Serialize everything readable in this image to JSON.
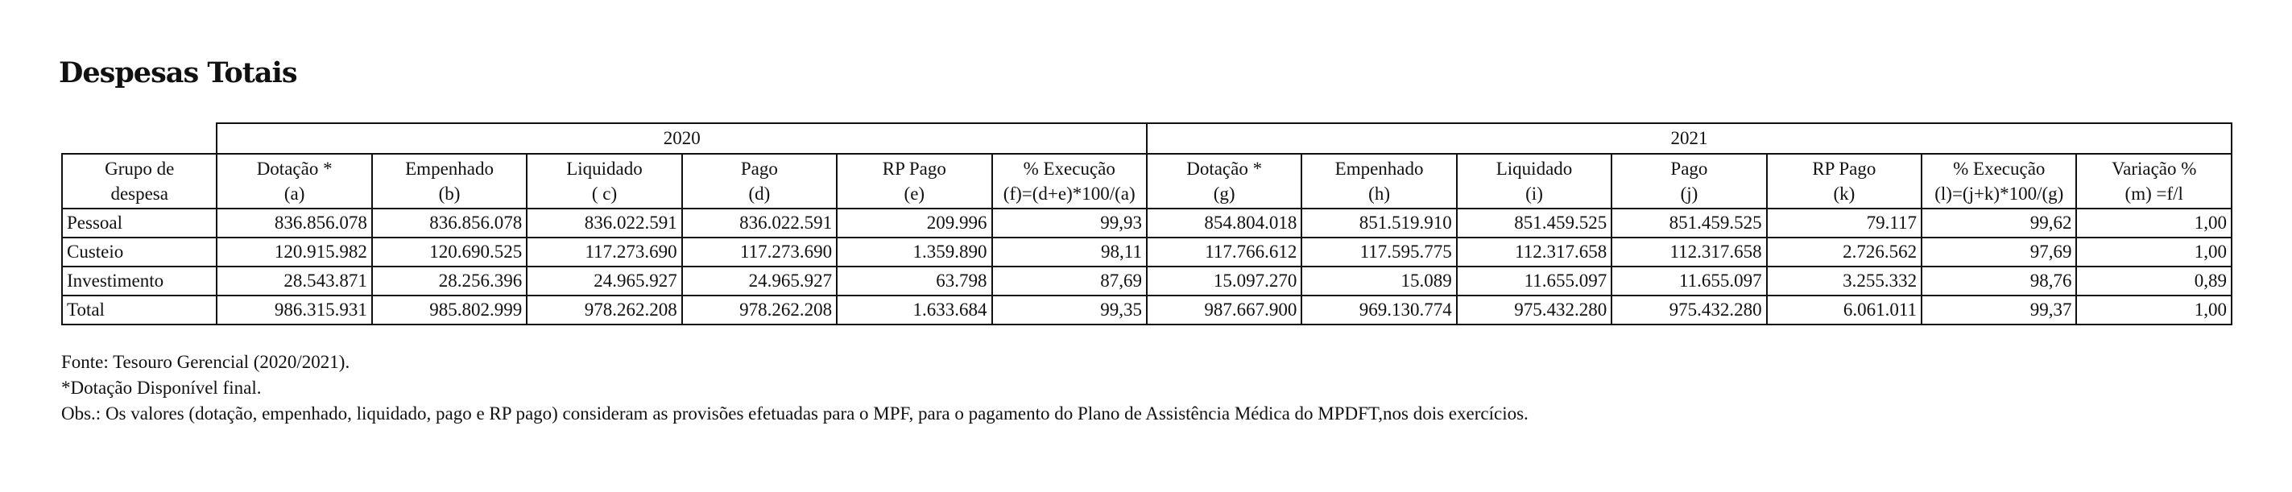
{
  "title": "Despesas Totais",
  "years": [
    "2020",
    "2021"
  ],
  "headers": [
    [
      "Grupo de",
      "despesa"
    ],
    [
      "Dotação *",
      "(a)"
    ],
    [
      "Empenhado",
      "(b)"
    ],
    [
      "Liquidado",
      "( c)"
    ],
    [
      "Pago",
      "(d)"
    ],
    [
      "RP Pago",
      "(e)"
    ],
    [
      "% Execução",
      "(f)=(d+e)*100/(a)"
    ],
    [
      "Dotação *",
      "(g)"
    ],
    [
      "Empenhado",
      "(h)"
    ],
    [
      "Liquidado",
      "(i)"
    ],
    [
      "Pago",
      "(j)"
    ],
    [
      "RP Pago",
      "(k)"
    ],
    [
      "% Execução",
      "(l)=(j+k)*100/(g)"
    ],
    [
      "Variação %",
      "(m) =f/l"
    ]
  ],
  "rows": [
    [
      "Pessoal",
      "836.856.078",
      "836.856.078",
      "836.022.591",
      "836.022.591",
      "209.996",
      "99,93",
      "854.804.018",
      "851.519.910",
      "851.459.525",
      "851.459.525",
      "79.117",
      "99,62",
      "1,00"
    ],
    [
      "Custeio",
      "120.915.982",
      "120.690.525",
      "117.273.690",
      "117.273.690",
      "1.359.890",
      "98,11",
      "117.766.612",
      "117.595.775",
      "112.317.658",
      "112.317.658",
      "2.726.562",
      "97,69",
      "1,00"
    ],
    [
      "Investimento",
      "28.543.871",
      "28.256.396",
      "24.965.927",
      "24.965.927",
      "63.798",
      "87,69",
      "15.097.270",
      "15.089",
      "11.655.097",
      "11.655.097",
      "3.255.332",
      "98,76",
      "0,89"
    ],
    [
      "Total",
      "986.315.931",
      "985.802.999",
      "978.262.208",
      "978.262.208",
      "1.633.684",
      "99,35",
      "987.667.900",
      "969.130.774",
      "975.432.280",
      "975.432.280",
      "6.061.011",
      "99,37",
      "1,00"
    ]
  ],
  "notes": [
    "Fonte: Tesouro Gerencial (2020/2021).",
    "*Dotação Disponível final.",
    "Obs.: Os valores (dotação, empenhado, liquidado, pago e RP pago) consideram as provisões efetuadas para o MPF, para o pagamento do Plano de Assistência Médica do MPDFT,nos dois exercícios."
  ]
}
